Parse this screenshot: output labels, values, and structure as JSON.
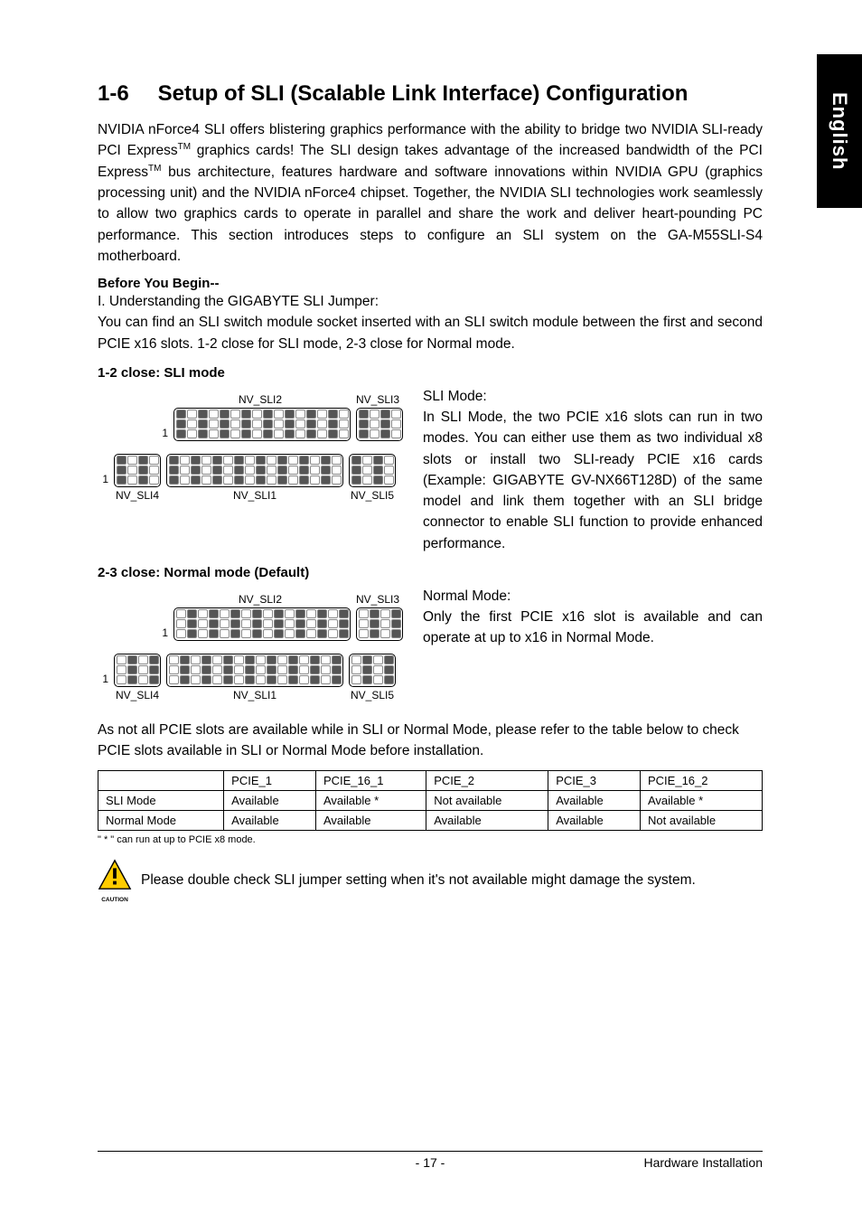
{
  "sideTab": "English",
  "heading": {
    "num": "1-6",
    "title": "Setup of SLI (Scalable Link Interface) Configuration"
  },
  "intro1": "NVIDIA nForce4 SLI offers blistering graphics performance with the ability to bridge two NVIDIA SLI-ready PCI Express",
  "intro2": " graphics cards! The SLI design takes advantage of the increased bandwidth of the PCI Express",
  "intro3": " bus architecture, features hardware and software innovations within NVIDIA GPU (graphics processing unit) and the NVIDIA nForce4 chipset. Together, the NVIDIA SLI technologies work seamlessly to allow two graphics cards to operate in parallel and share the work and deliver heart-pounding PC performance.   This section introduces steps to configure an SLI system on the GA-M55SLI-S4 motherboard.",
  "tm": "TM",
  "before": "Before You Begin--",
  "understand": "I. Understanding the GIGABYTE SLI Jumper:",
  "understandText": "You can find an SLI switch module socket inserted with an SLI switch module between the first and second PCIE x16 slots. 1-2 close for SLI mode, 2-3 close for Normal mode.",
  "mode1": {
    "title": "1-2 close: SLI mode",
    "lblTop1": "NV_SLI2",
    "lblTop2": "NV_SLI3",
    "lblBot0": "NV_SLI4",
    "lblBot1": "NV_SLI1",
    "lblBot2": "NV_SLI5",
    "rightTitle": "SLI Mode:",
    "rightText": "In SLI Mode, the two PCIE x16 slots can run in two modes. You can either use them as two individual x8 slots or install two SLI-ready PCIE x16 cards (Example: GIGABYTE GV-NX66T128D) of the same model and link them together with an SLI bridge connector to enable SLI function to provide enhanced performance."
  },
  "mode2": {
    "title": "2-3 close: Normal mode (Default)",
    "lblTop1": "NV_SLI2",
    "lblTop2": "NV_SLI3",
    "lblBot0": "NV_SLI4",
    "lblBot1": "NV_SLI1",
    "lblBot2": "NV_SLI5",
    "rightTitle": "Normal Mode:",
    "rightText": "Only the first PCIE x16 slot is available and can operate at up to x16 in Normal Mode."
  },
  "tableNote": "As not all PCIE slots are available while in SLI or Normal Mode, please refer to the table below to check PCIE slots available in SLI or Normal Mode before installation.",
  "table": {
    "headers": [
      "",
      "PCIE_1",
      "PCIE_16_1",
      "PCIE_2",
      "PCIE_3",
      "PCIE_16_2"
    ],
    "rows": [
      [
        "SLI Mode",
        "Available",
        "Available *",
        "Not available",
        "Available",
        "Available *"
      ],
      [
        "Normal Mode",
        "Available",
        "Available",
        "Available",
        "Available",
        "Not available"
      ]
    ]
  },
  "footnote": "\" * \" can run at up to PCIE x8 mode.",
  "cautionLabel": "CAUTION",
  "cautionText": "Please double check SLI jumper setting when it's not available might damage the system.",
  "footer": {
    "page": "- 17 -",
    "section": "Hardware Installation"
  },
  "pinOne": "1",
  "connStyle": {
    "mode1_top": [
      [
        1,
        0,
        1,
        0,
        1,
        0,
        1,
        0,
        1,
        0,
        1,
        0,
        1,
        0,
        1,
        0
      ],
      [
        1,
        0,
        1,
        0,
        1,
        0,
        1,
        0,
        1,
        0,
        1,
        0,
        1,
        0,
        1,
        0
      ],
      [
        1,
        0,
        1,
        0,
        1,
        0,
        1,
        0,
        1,
        0,
        1,
        0,
        1,
        0,
        1,
        0
      ]
    ],
    "small_dark": [
      [
        1,
        0,
        1,
        0
      ],
      [
        1,
        0,
        1,
        0
      ],
      [
        1,
        0,
        1,
        0
      ]
    ],
    "mode2_top": [
      [
        0,
        1,
        0,
        1,
        0,
        1,
        0,
        1,
        0,
        1,
        0,
        1,
        0,
        1,
        0,
        1
      ],
      [
        0,
        1,
        0,
        1,
        0,
        1,
        0,
        1,
        0,
        1,
        0,
        1,
        0,
        1,
        0,
        1
      ],
      [
        0,
        1,
        0,
        1,
        0,
        1,
        0,
        1,
        0,
        1,
        0,
        1,
        0,
        1,
        0,
        1
      ]
    ],
    "small_light": [
      [
        0,
        1,
        0,
        1
      ],
      [
        0,
        1,
        0,
        1
      ],
      [
        0,
        1,
        0,
        1
      ]
    ]
  }
}
